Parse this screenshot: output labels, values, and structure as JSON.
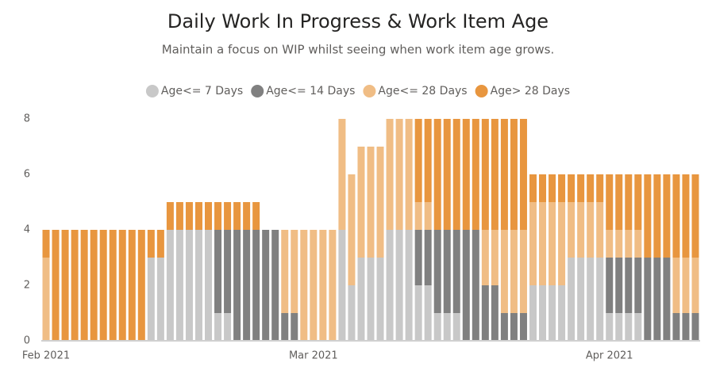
{
  "chart_data": {
    "type": "stacked_bar",
    "title": "Daily Work In Progress & Work Item Age",
    "subtitle": "Maintain a focus on WIP whilst seeing when work item age grows.",
    "categories": [
      "Feb 2021",
      null,
      null,
      null,
      null,
      null,
      null,
      null,
      null,
      null,
      null,
      null,
      null,
      null,
      null,
      null,
      null,
      null,
      null,
      null,
      null,
      null,
      null,
      null,
      null,
      null,
      null,
      null,
      "Mar 2021",
      null,
      null,
      null,
      null,
      null,
      null,
      null,
      null,
      null,
      null,
      null,
      null,
      null,
      null,
      null,
      null,
      null,
      null,
      null,
      null,
      null,
      null,
      null,
      null,
      null,
      null,
      null,
      null,
      null,
      null,
      "Apr 2021",
      null,
      null,
      null,
      null,
      null,
      null,
      null,
      null,
      null
    ],
    "series": [
      {
        "name": "Age<= 7 Days",
        "color": "#c8c8c8",
        "values": [
          0,
          0,
          0,
          0,
          0,
          0,
          0,
          0,
          0,
          0,
          0,
          3,
          3,
          4,
          4,
          4,
          4,
          4,
          1,
          1,
          0,
          0,
          0,
          0,
          0,
          0,
          0,
          0,
          0,
          0,
          0,
          4,
          2,
          3,
          3,
          3,
          4,
          4,
          4,
          2,
          2,
          1,
          1,
          1,
          0,
          0,
          0,
          0,
          0,
          0,
          0,
          2,
          2,
          2,
          2,
          3,
          3,
          3,
          3,
          1,
          1,
          1,
          1,
          0,
          0,
          0,
          0,
          0,
          0
        ]
      },
      {
        "name": "Age<= 14 Days",
        "color": "#808080",
        "values": [
          0,
          0,
          0,
          0,
          0,
          0,
          0,
          0,
          0,
          0,
          0,
          0,
          0,
          0,
          0,
          0,
          0,
          0,
          3,
          3,
          4,
          4,
          4,
          4,
          4,
          1,
          1,
          0,
          0,
          0,
          0,
          0,
          0,
          0,
          0,
          0,
          0,
          0,
          0,
          2,
          2,
          3,
          3,
          3,
          4,
          4,
          2,
          2,
          1,
          1,
          1,
          0,
          0,
          0,
          0,
          0,
          0,
          0,
          0,
          2,
          2,
          2,
          2,
          3,
          3,
          3,
          1,
          1,
          1
        ]
      },
      {
        "name": "Age<= 28 Days",
        "color": "#f0bd85",
        "values": [
          3,
          0,
          0,
          0,
          0,
          0,
          0,
          0,
          0,
          0,
          0,
          0,
          0,
          0,
          0,
          0,
          0,
          0,
          0,
          0,
          0,
          0,
          0,
          0,
          0,
          3,
          3,
          4,
          4,
          4,
          4,
          4,
          4,
          4,
          4,
          4,
          4,
          4,
          4,
          1,
          1,
          0,
          0,
          0,
          0,
          0,
          2,
          2,
          3,
          3,
          3,
          3,
          3,
          3,
          3,
          2,
          2,
          2,
          2,
          1,
          1,
          1,
          1,
          0,
          0,
          0,
          2,
          2,
          2
        ]
      },
      {
        "name": "Age> 28 Days",
        "color": "#e8963f",
        "values": [
          1,
          4,
          4,
          4,
          4,
          4,
          4,
          4,
          4,
          4,
          4,
          1,
          1,
          1,
          1,
          1,
          1,
          1,
          1,
          1,
          1,
          1,
          1,
          0,
          0,
          0,
          0,
          0,
          0,
          0,
          0,
          0,
          0,
          0,
          0,
          0,
          0,
          0,
          0,
          3,
          3,
          4,
          4,
          4,
          4,
          4,
          4,
          4,
          4,
          4,
          4,
          1,
          1,
          1,
          1,
          1,
          1,
          1,
          1,
          2,
          2,
          2,
          2,
          3,
          3,
          3,
          3,
          3,
          3
        ]
      }
    ],
    "ylim": [
      0,
      8
    ],
    "yticks": [
      0,
      2,
      4,
      6,
      8
    ],
    "grid": false
  }
}
